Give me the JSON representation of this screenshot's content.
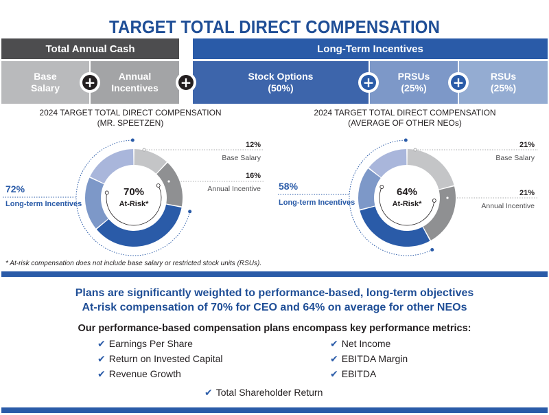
{
  "title": "TARGET TOTAL DIRECT COMPENSATION",
  "headers": {
    "cash": "Total Annual Cash",
    "lti": "Long-Term Incentives"
  },
  "components": {
    "base_salary": "Base\nSalary",
    "annual_incentives": "Annual\nIncentives",
    "stock_options": "Stock Options\n(50%)",
    "prsus": "PRSUs\n(25%)",
    "rsus": "RSUs\n(25%)"
  },
  "colors": {
    "blue_dark": "#2a5ba8",
    "blue_mid": "#7d98c8",
    "blue_light": "#a9b6db",
    "gray_light": "#c4c5c7",
    "gray_dark": "#8f9092"
  },
  "chart_data": [
    {
      "type": "pie",
      "caption_line1": "2024 TARGET TOTAL DIRECT COMPENSATION",
      "caption_line2": "(MR. SPEETZEN)",
      "center_value": "70%",
      "center_label": "At-Risk*",
      "slices": [
        {
          "name": "Base Salary",
          "value": 12,
          "label": "12%"
        },
        {
          "name": "Annual Incentive",
          "value": 16,
          "label": "16%"
        },
        {
          "name": "Stock Options",
          "value": 36
        },
        {
          "name": "PRSUs",
          "value": 18
        },
        {
          "name": "RSUs",
          "value": 18
        }
      ],
      "lti_total": "72%",
      "lti_label": "Long-term Incentives"
    },
    {
      "type": "pie",
      "caption_line1": "2024 TARGET TOTAL DIRECT COMPENSATION",
      "caption_line2": "(AVERAGE OF OTHER NEOs)",
      "center_value": "64%",
      "center_label": "At-Risk*",
      "slices": [
        {
          "name": "Base Salary",
          "value": 21,
          "label": "21%"
        },
        {
          "name": "Annual Incentive",
          "value": 21,
          "label": "21%"
        },
        {
          "name": "Stock Options",
          "value": 29
        },
        {
          "name": "PRSUs",
          "value": 14.5
        },
        {
          "name": "RSUs",
          "value": 14.5
        }
      ],
      "lti_total": "58%",
      "lti_label": "Long-term Incentives"
    }
  ],
  "footnote": "* At-risk compensation does not include base salary or restricted stock units (RSUs).",
  "headline_line1": "Plans are significantly weighted to performance-based, long-term objectives",
  "headline_line2": "At-risk compensation of 70% for CEO and 64% on average for other NEOs",
  "metrics_intro": "Our performance-based compensation plans encompass key performance metrics:",
  "check_glyph": "✔",
  "metrics_left": [
    "Earnings Per Share",
    "Return on Invested Capital",
    "Revenue Growth"
  ],
  "metrics_right": [
    "Net Income",
    "EBITDA Margin",
    "EBITDA"
  ],
  "metrics_bottom": "Total Shareholder Return"
}
